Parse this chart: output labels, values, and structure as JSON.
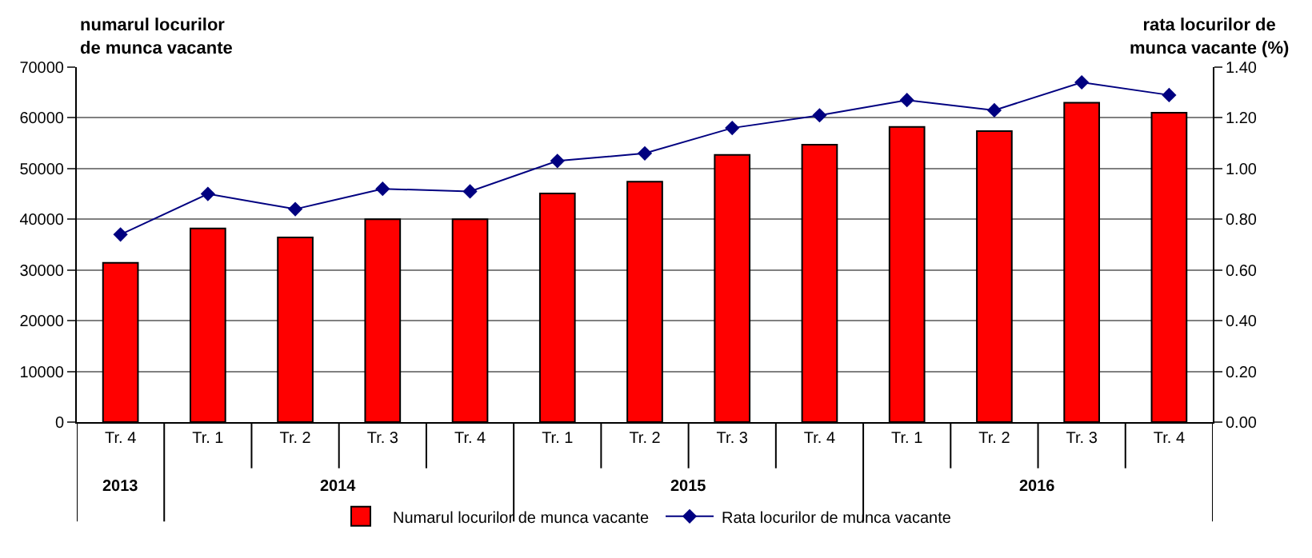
{
  "chart_data": {
    "type": "bar",
    "ylabel": "numarul locurilor\nde munca vacante",
    "y2label": "rata locurilor de\nmunca vacante (%)",
    "categories": [
      "Tr. 4",
      "Tr. 1",
      "Tr. 2",
      "Tr. 3",
      "Tr. 4",
      "Tr. 1",
      "Tr. 2",
      "Tr. 3",
      "Tr. 4",
      "Tr. 1",
      "Tr. 2",
      "Tr. 3",
      "Tr. 4"
    ],
    "annotations": [
      "2013",
      "2014",
      "2015",
      "2016"
    ],
    "series": [
      {
        "name": "Numarul locurilor de munca vacante",
        "color": "#ff0000",
        "values": [
          31400,
          38200,
          36400,
          40000,
          40000,
          45100,
          47400,
          52700,
          54700,
          58200,
          57400,
          63000,
          61000
        ]
      },
      {
        "name": "Rata locurilor de munca vacante",
        "type": "line",
        "axis": "y2",
        "color": "#000080",
        "marker": "diamond",
        "values": [
          0.74,
          0.9,
          0.84,
          0.92,
          0.91,
          1.03,
          1.06,
          1.16,
          1.21,
          1.27,
          1.23,
          1.34,
          1.29
        ]
      }
    ],
    "ylim": [
      0,
      70000
    ],
    "yticks": [
      0,
      10000,
      20000,
      30000,
      40000,
      50000,
      60000,
      70000
    ],
    "y2lim": [
      0,
      1.4
    ],
    "y2ticks": [
      {
        "value": 0,
        "label": "0.00"
      },
      {
        "value": 0.2,
        "label": "0.20"
      },
      {
        "value": 0.4,
        "label": "0.40"
      },
      {
        "value": 0.6,
        "label": "0.60"
      },
      {
        "value": 0.8,
        "label": "0.80"
      },
      {
        "value": 1.0,
        "label": "1.00"
      },
      {
        "value": 1.2,
        "label": "1.20"
      },
      {
        "value": 1.4,
        "label": "1.40"
      }
    ],
    "grid": "y",
    "legend": "bottom"
  }
}
